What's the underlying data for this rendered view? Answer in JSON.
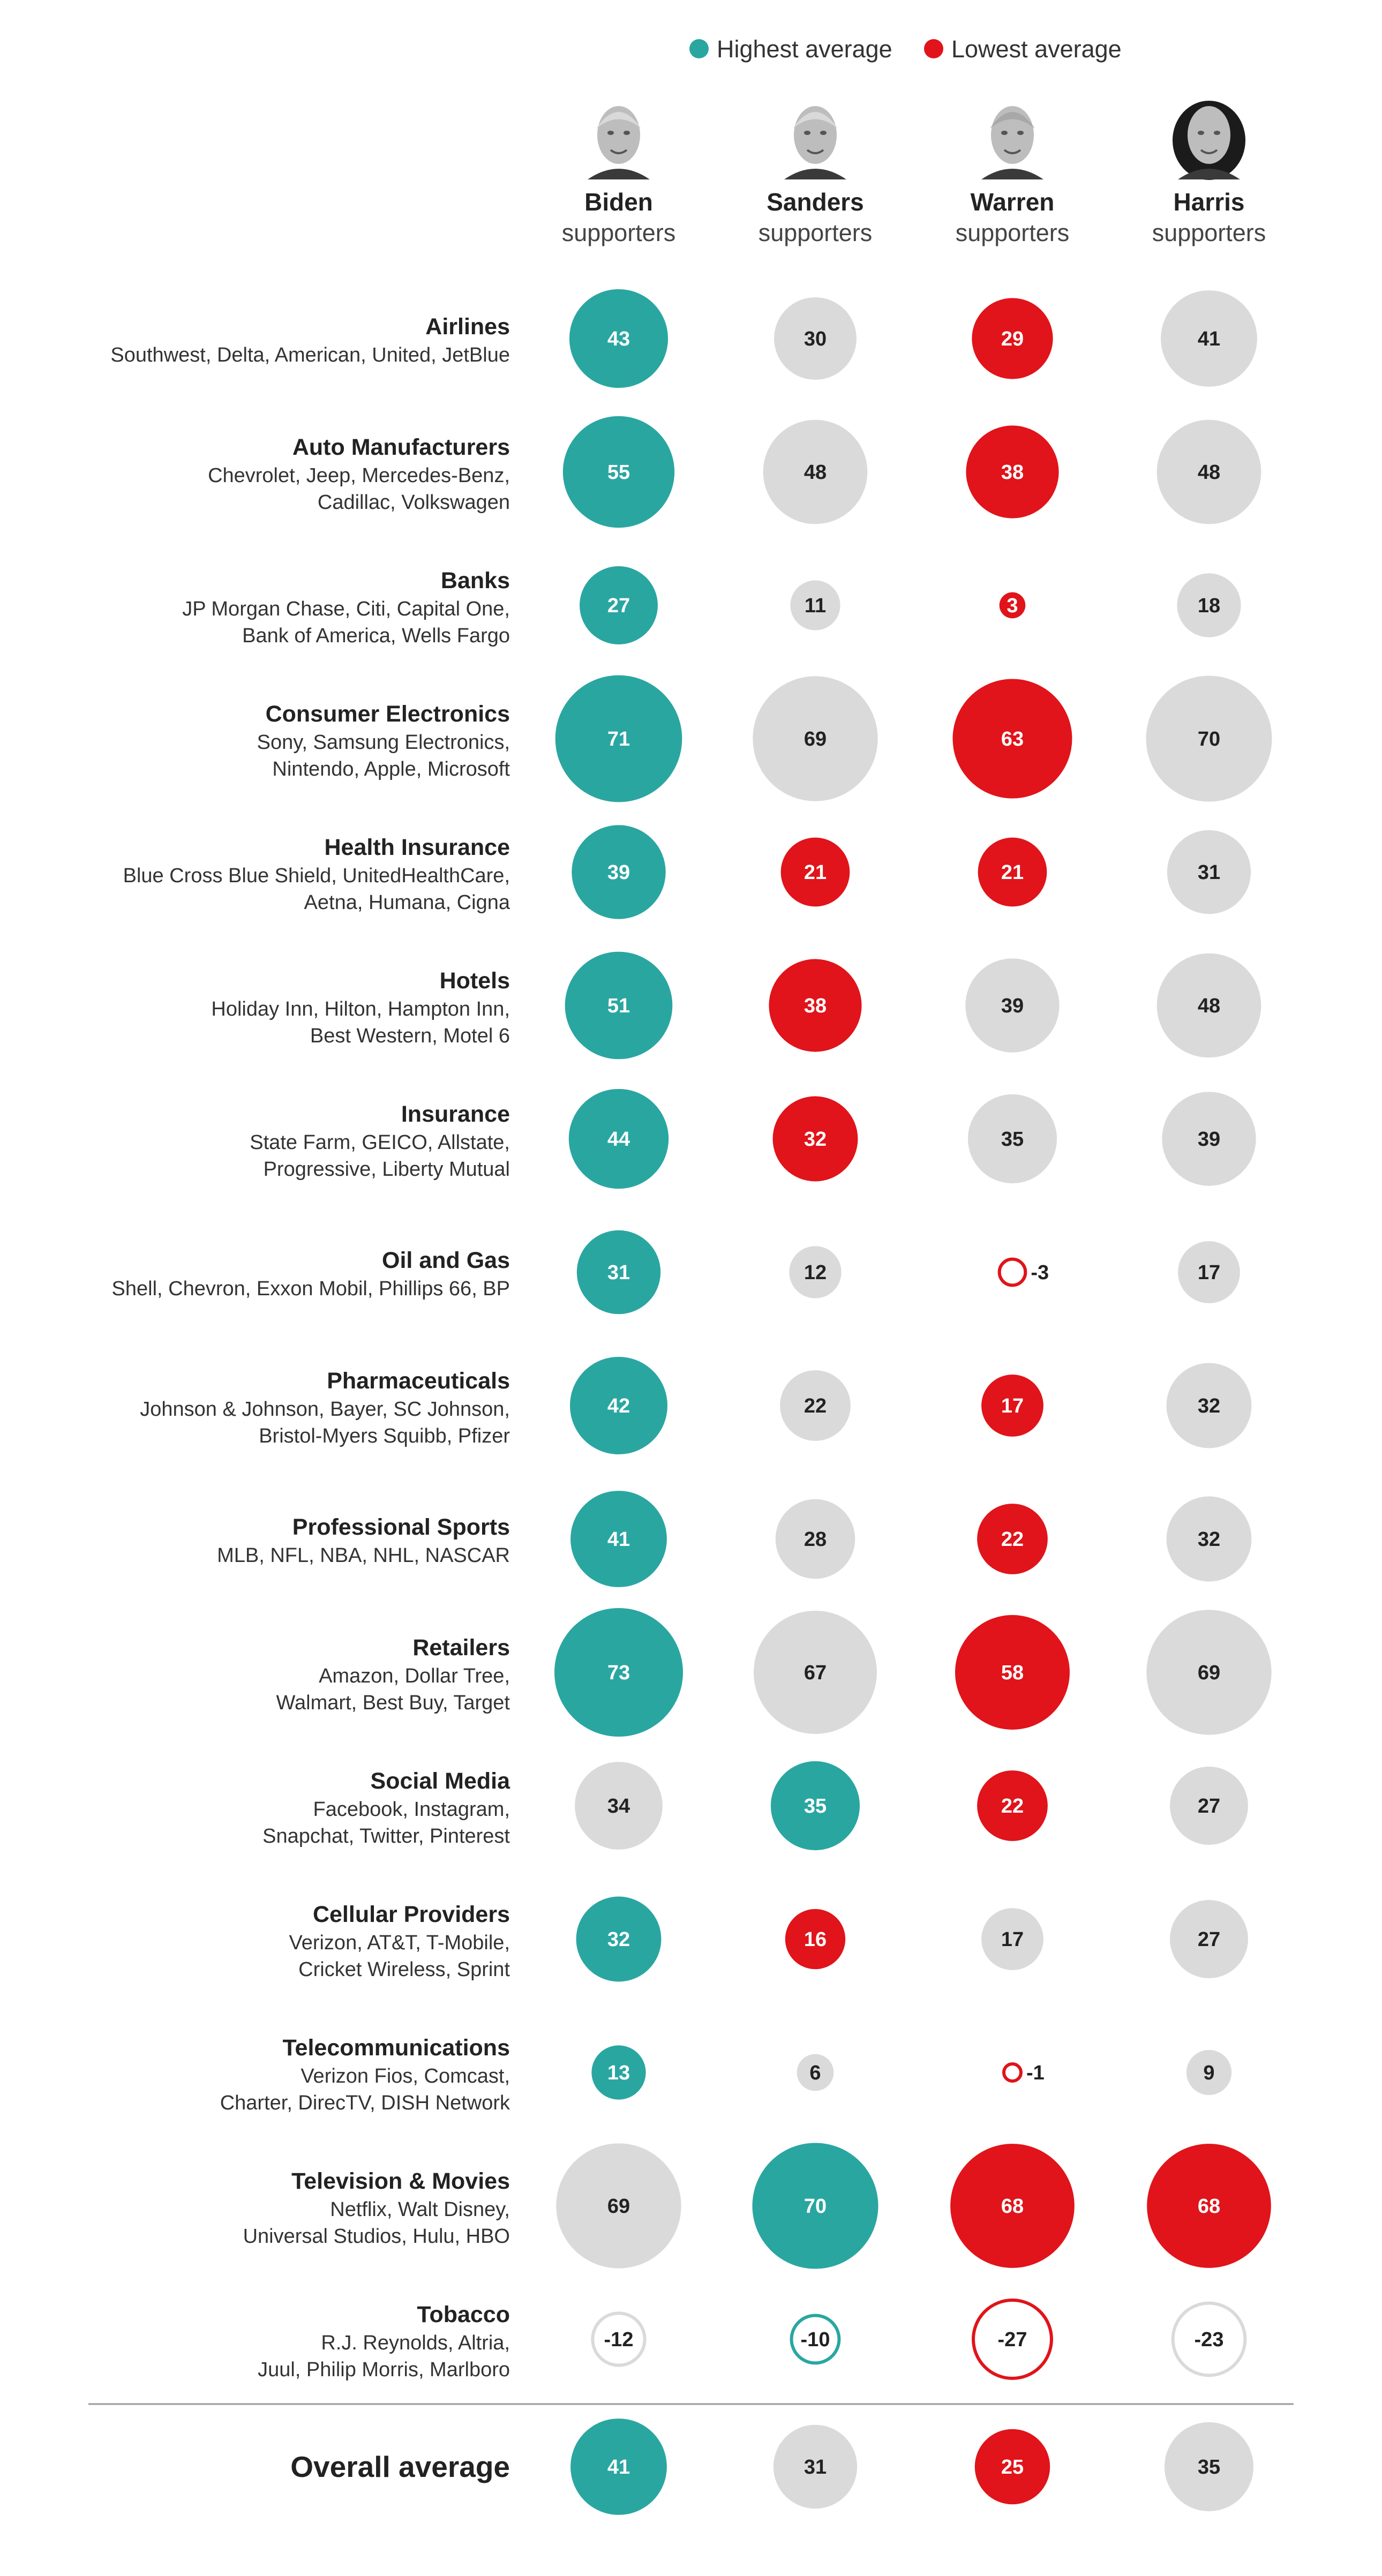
{
  "legend": {
    "highest_label": "Highest average",
    "lowest_label": "Lowest average"
  },
  "colors": {
    "highest": "#2aa6a1",
    "lowest": "#e0141a",
    "neutral": "#dadada",
    "text_dark": "#222222",
    "text_light": "#ffffff"
  },
  "candidates": [
    {
      "name": "Biden",
      "sub": "supporters",
      "portrait": "biden-portrait"
    },
    {
      "name": "Sanders",
      "sub": "supporters",
      "portrait": "sanders-portrait"
    },
    {
      "name": "Warren",
      "sub": "supporters",
      "portrait": "warren-portrait"
    },
    {
      "name": "Harris",
      "sub": "supporters",
      "portrait": "harris-portrait"
    }
  ],
  "chart_data": {
    "type": "bubble-table",
    "series_names": [
      "Biden supporters",
      "Sanders supporters",
      "Warren supporters",
      "Harris supporters"
    ],
    "rows": [
      {
        "category": "Airlines",
        "brands": [
          "Southwest, Delta, American, United, JetBlue"
        ],
        "values": [
          43,
          30,
          29,
          41
        ],
        "highlight": [
          "high",
          "none",
          "low",
          "none"
        ]
      },
      {
        "category": "Auto Manufacturers",
        "brands": [
          "Chevrolet, Jeep, Mercedes-Benz,",
          "Cadillac, Volkswagen"
        ],
        "values": [
          55,
          48,
          38,
          48
        ],
        "highlight": [
          "high",
          "none",
          "low",
          "none"
        ]
      },
      {
        "category": "Banks",
        "brands": [
          "JP Morgan Chase, Citi, Capital One,",
          "Bank of America, Wells Fargo"
        ],
        "values": [
          27,
          11,
          3,
          18
        ],
        "highlight": [
          "high",
          "none",
          "low",
          "none"
        ]
      },
      {
        "category": "Consumer Electronics",
        "brands": [
          "Sony, Samsung Electronics,",
          "Nintendo, Apple, Microsoft"
        ],
        "values": [
          71,
          69,
          63,
          70
        ],
        "highlight": [
          "high",
          "none",
          "low",
          "none"
        ]
      },
      {
        "category": "Health Insurance",
        "brands": [
          "Blue Cross Blue Shield, UnitedHealthCare,",
          "Aetna, Humana, Cigna"
        ],
        "values": [
          39,
          21,
          21,
          31
        ],
        "highlight": [
          "high",
          "low",
          "low",
          "none"
        ]
      },
      {
        "category": "Hotels",
        "brands": [
          "Holiday Inn, Hilton, Hampton Inn,",
          "Best Western, Motel 6"
        ],
        "values": [
          51,
          38,
          39,
          48
        ],
        "highlight": [
          "high",
          "low",
          "none",
          "none"
        ]
      },
      {
        "category": "Insurance",
        "brands": [
          "State Farm, GEICO, Allstate,",
          "Progressive, Liberty Mutual"
        ],
        "values": [
          44,
          32,
          35,
          39
        ],
        "highlight": [
          "high",
          "low",
          "none",
          "none"
        ]
      },
      {
        "category": "Oil and Gas",
        "brands": [
          "Shell, Chevron, Exxon Mobil, Phillips 66, BP"
        ],
        "values": [
          31,
          12,
          -3,
          17
        ],
        "highlight": [
          "high",
          "none",
          "low",
          "none"
        ]
      },
      {
        "category": "Pharmaceuticals",
        "brands": [
          "Johnson & Johnson, Bayer, SC Johnson,",
          "Bristol-Myers Squibb, Pfizer"
        ],
        "values": [
          42,
          22,
          17,
          32
        ],
        "highlight": [
          "high",
          "none",
          "low",
          "none"
        ]
      },
      {
        "category": "Professional Sports",
        "brands": [
          "MLB, NFL, NBA, NHL, NASCAR"
        ],
        "values": [
          41,
          28,
          22,
          32
        ],
        "highlight": [
          "high",
          "none",
          "low",
          "none"
        ]
      },
      {
        "category": "Retailers",
        "brands": [
          "Amazon, Dollar Tree,",
          "Walmart, Best Buy, Target"
        ],
        "values": [
          73,
          67,
          58,
          69
        ],
        "highlight": [
          "high",
          "none",
          "low",
          "none"
        ]
      },
      {
        "category": "Social Media",
        "brands": [
          "Facebook, Instagram,",
          "Snapchat, Twitter, Pinterest"
        ],
        "values": [
          34,
          35,
          22,
          27
        ],
        "highlight": [
          "none",
          "high",
          "low",
          "none"
        ]
      },
      {
        "category": "Cellular Providers",
        "brands": [
          "Verizon, AT&T, T-Mobile,",
          "Cricket Wireless, Sprint"
        ],
        "values": [
          32,
          16,
          17,
          27
        ],
        "highlight": [
          "high",
          "low",
          "none",
          "none"
        ]
      },
      {
        "category": "Telecommunications",
        "brands": [
          "Verizon Fios, Comcast,",
          "Charter, DirecTV, DISH Network"
        ],
        "values": [
          13,
          6,
          -1,
          9
        ],
        "highlight": [
          "high",
          "none",
          "low",
          "none"
        ]
      },
      {
        "category": "Television & Movies",
        "brands": [
          "Netflix, Walt Disney,",
          "Universal Studios, Hulu, HBO"
        ],
        "values": [
          69,
          70,
          68,
          68
        ],
        "highlight": [
          "none",
          "high",
          "low",
          "low"
        ]
      },
      {
        "category": "Tobacco",
        "brands": [
          "R.J. Reynolds, Altria,",
          "Juul, Philip Morris, Marlboro"
        ],
        "values": [
          -12,
          -10,
          -27,
          -23
        ],
        "highlight": [
          "none",
          "high",
          "low",
          "none"
        ]
      }
    ],
    "overall": {
      "label": "Overall average",
      "values": [
        41,
        31,
        25,
        35
      ],
      "highlight": [
        "high",
        "none",
        "low",
        "none"
      ]
    }
  }
}
